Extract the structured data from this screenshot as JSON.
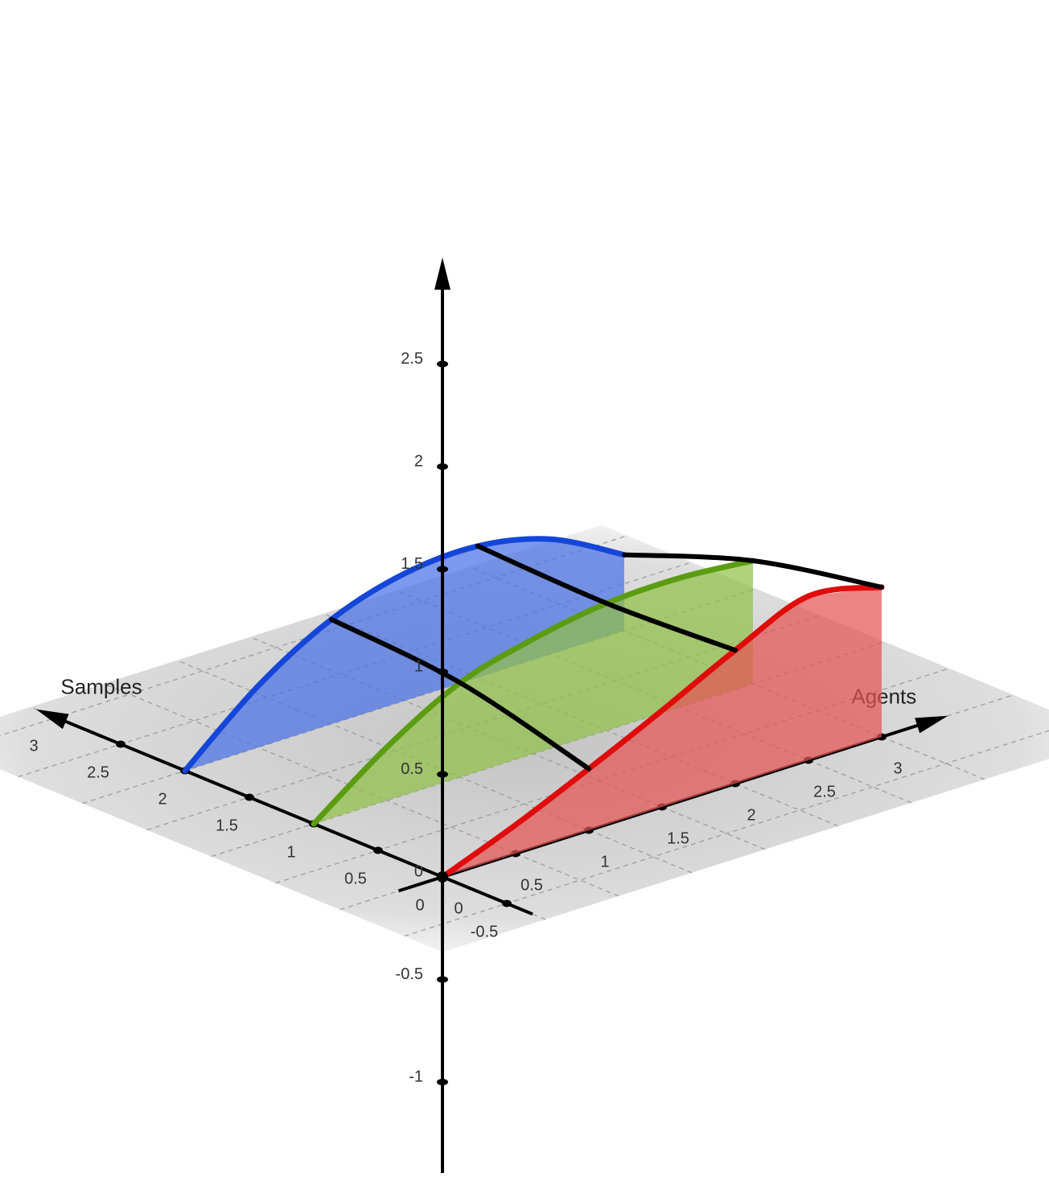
{
  "chart_data": {
    "type": "line3d",
    "xlabel": "Samples",
    "ylabel": "Agents",
    "xlim": [
      -0.7,
      3.1
    ],
    "xticks": [
      -0.5,
      0,
      0.5,
      1,
      1.5,
      2,
      2.5,
      3
    ],
    "ylim": [
      -0.3,
      3.4
    ],
    "yticks": [
      0,
      0.5,
      1,
      1.5,
      2,
      2.5,
      3
    ],
    "zlim": [
      -1.47,
      2.98
    ],
    "zticks": [
      -1,
      -0.5,
      0,
      0.5,
      1,
      1.5,
      2,
      2.5
    ],
    "grid": true,
    "agents": [
      0,
      0.5,
      1,
      1.5,
      2,
      2.5,
      3
    ],
    "series": [
      {
        "samples": 2,
        "color": "#1446d8",
        "fill": "#4a72e6",
        "values": [
          0,
          0.3,
          0.51,
          0.62,
          0.64,
          0.56,
          0.37
        ]
      },
      {
        "samples": 1,
        "color": "#5b9c12",
        "fill": "#92c048",
        "values": [
          0,
          0.26,
          0.46,
          0.56,
          0.62,
          0.63,
          0.6
        ]
      },
      {
        "samples": 0,
        "color": "#e00c0c",
        "fill": "#e45454",
        "values": [
          0,
          0.14,
          0.3,
          0.47,
          0.65,
          0.8,
          0.73
        ]
      }
    ],
    "connectors": [
      2,
      4,
      6
    ]
  }
}
